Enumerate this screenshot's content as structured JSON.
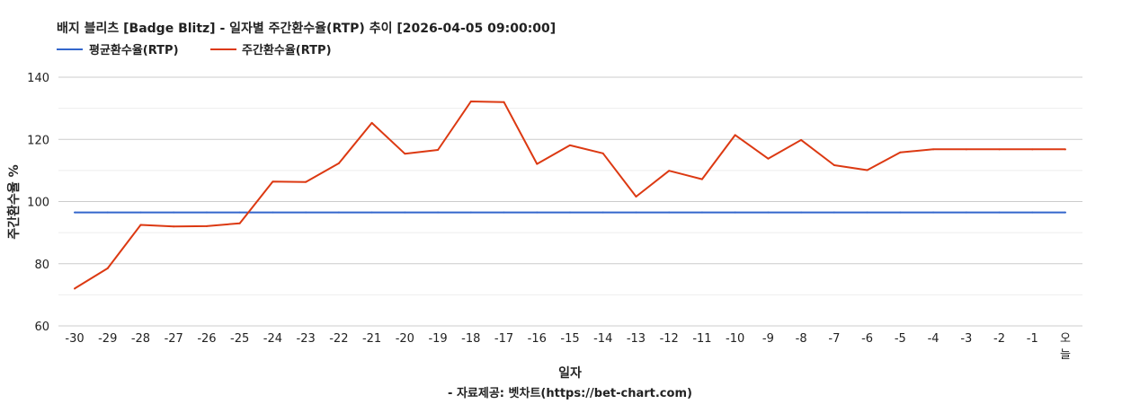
{
  "chart_data": {
    "type": "line",
    "title": "배지 블리츠 [Badge Blitz] - 일자별 주간환수율(RTP) 추이 [2026-04-05 09:00:00]",
    "xlabel": "일자",
    "ylabel": "주간환수율 %",
    "source": "- 자료제공: 벳차트(https://bet-chart.com)",
    "legend_position": "top-left",
    "grid": true,
    "ylim": [
      60,
      140
    ],
    "yticks": [
      "60",
      "80",
      "100",
      "120",
      "140"
    ],
    "categories": [
      "-30",
      "-29",
      "-28",
      "-27",
      "-26",
      "-25",
      "-24",
      "-23",
      "-22",
      "-21",
      "-20",
      "-19",
      "-18",
      "-17",
      "-16",
      "-15",
      "-14",
      "-13",
      "-12",
      "-11",
      "-10",
      "-9",
      "-8",
      "-7",
      "-6",
      "-5",
      "-4",
      "-3",
      "-2",
      "-1",
      "오늘"
    ],
    "series": [
      {
        "name": "평균환수율(RTP)",
        "color": "#3366cc",
        "values": [
          96.5,
          96.5,
          96.5,
          96.5,
          96.5,
          96.5,
          96.5,
          96.5,
          96.5,
          96.5,
          96.5,
          96.5,
          96.5,
          96.5,
          96.5,
          96.5,
          96.5,
          96.5,
          96.5,
          96.5,
          96.5,
          96.5,
          96.5,
          96.5,
          96.5,
          96.5,
          96.5,
          96.5,
          96.5,
          96.5,
          96.5
        ]
      },
      {
        "name": "주간환수율(RTP)",
        "color": "#dc3912",
        "values": [
          72.0,
          78.5,
          92.5,
          92.0,
          92.1,
          93.0,
          106.4,
          106.3,
          112.3,
          125.3,
          115.4,
          116.6,
          132.2,
          132.0,
          112.1,
          118.1,
          115.5,
          101.6,
          109.9,
          107.2,
          121.4,
          113.8,
          119.8,
          111.7,
          110.1,
          115.8,
          116.8,
          116.8,
          116.8,
          116.8,
          116.8
        ]
      }
    ]
  }
}
